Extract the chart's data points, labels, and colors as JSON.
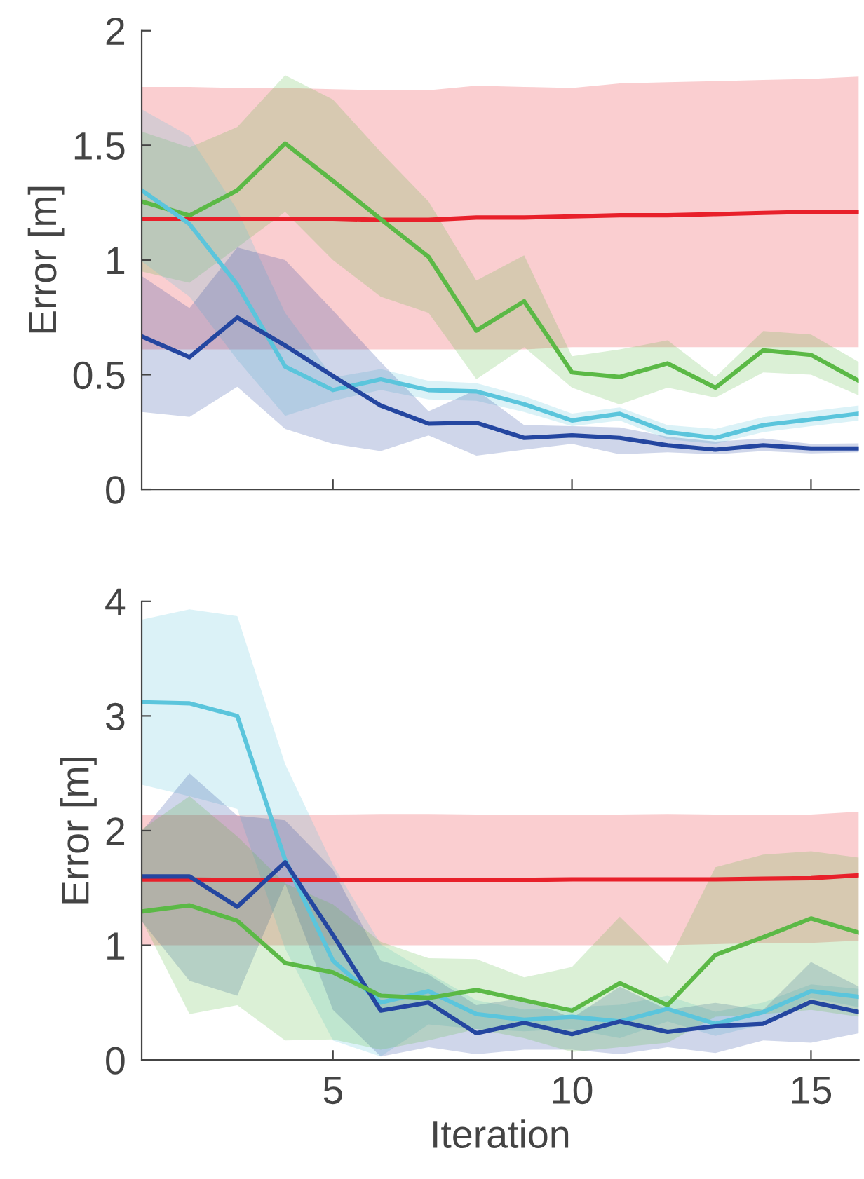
{
  "chart_data": [
    {
      "type": "line",
      "ylabel": "Error [m]",
      "x": [
        1,
        2,
        3,
        4,
        5,
        6,
        7,
        8,
        9,
        10,
        11,
        12,
        13,
        14,
        15,
        16
      ],
      "xlim": [
        1,
        16
      ],
      "ylim": [
        0,
        2
      ],
      "xticks": [
        5,
        10,
        15
      ],
      "yticks": [
        0,
        0.5,
        1,
        1.5,
        2
      ],
      "grid": false,
      "tick_labels": "y",
      "series": [
        {
          "color": "#e8202a",
          "values": [
            1.18,
            1.18,
            1.18,
            1.18,
            1.18,
            1.175,
            1.175,
            1.185,
            1.185,
            1.19,
            1.195,
            1.195,
            1.2,
            1.205,
            1.21,
            1.21
          ],
          "upper": [
            1.755,
            1.755,
            1.75,
            1.75,
            1.745,
            1.74,
            1.74,
            1.76,
            1.755,
            1.75,
            1.77,
            1.775,
            1.78,
            1.785,
            1.79,
            1.8
          ],
          "lower": [
            0.61,
            0.61,
            0.61,
            0.61,
            0.61,
            0.61,
            0.61,
            0.61,
            0.61,
            0.62,
            0.62,
            0.62,
            0.62,
            0.62,
            0.62,
            0.62
          ]
        },
        {
          "color": "#5bb946",
          "values": [
            1.255,
            1.194,
            1.304,
            1.508,
            1.345,
            1.178,
            1.014,
            0.692,
            0.82,
            0.51,
            0.49,
            0.549,
            0.443,
            0.606,
            0.586,
            0.473
          ],
          "upper": [
            1.56,
            1.49,
            1.58,
            1.806,
            1.7,
            1.47,
            1.255,
            0.91,
            1.02,
            0.58,
            0.61,
            0.65,
            0.49,
            0.69,
            0.675,
            0.555
          ],
          "lower": [
            0.95,
            0.9,
            1.055,
            1.21,
            1.0,
            0.84,
            0.77,
            0.48,
            0.62,
            0.443,
            0.37,
            0.443,
            0.4,
            0.51,
            0.5,
            0.41
          ]
        },
        {
          "color": "#5bc5dc",
          "values": [
            1.304,
            1.157,
            0.892,
            0.535,
            0.433,
            0.48,
            0.433,
            0.427,
            0.371,
            0.3,
            0.329,
            0.249,
            0.224,
            0.28,
            0.304,
            0.33
          ],
          "upper": [
            1.657,
            1.54,
            1.218,
            0.77,
            0.488,
            0.524,
            0.473,
            0.463,
            0.406,
            0.33,
            0.357,
            0.28,
            0.263,
            0.314,
            0.34,
            0.365
          ],
          "lower": [
            0.994,
            0.84,
            0.565,
            0.32,
            0.386,
            0.433,
            0.392,
            0.386,
            0.337,
            0.275,
            0.3,
            0.218,
            0.198,
            0.249,
            0.275,
            0.3
          ]
        },
        {
          "color": "#2446a0",
          "values": [
            0.667,
            0.576,
            0.749,
            0.627,
            0.494,
            0.365,
            0.286,
            0.29,
            0.224,
            0.235,
            0.224,
            0.192,
            0.173,
            0.192,
            0.178,
            0.178
          ],
          "upper": [
            0.93,
            0.79,
            1.055,
            1.0,
            0.78,
            0.555,
            0.34,
            0.433,
            0.28,
            0.275,
            0.27,
            0.229,
            0.208,
            0.222,
            0.198,
            0.2
          ],
          "lower": [
            0.337,
            0.316,
            0.447,
            0.263,
            0.198,
            0.167,
            0.235,
            0.147,
            0.173,
            0.198,
            0.153,
            0.161,
            0.153,
            0.167,
            0.157,
            0.161
          ]
        }
      ]
    },
    {
      "type": "line",
      "xlabel": "Iteration",
      "ylabel": "Error [m]",
      "x": [
        1,
        2,
        3,
        4,
        5,
        6,
        7,
        8,
        9,
        10,
        11,
        12,
        13,
        14,
        15,
        16
      ],
      "xlim": [
        1,
        16
      ],
      "ylim": [
        0,
        4
      ],
      "xticks": [
        5,
        10,
        15
      ],
      "yticks": [
        0,
        1,
        2,
        3,
        4
      ],
      "grid": false,
      "series": [
        {
          "color": "#e8202a",
          "values": [
            1.573,
            1.573,
            1.57,
            1.57,
            1.57,
            1.57,
            1.57,
            1.57,
            1.57,
            1.575,
            1.575,
            1.575,
            1.575,
            1.58,
            1.585,
            1.61
          ],
          "upper": [
            2.14,
            2.14,
            2.14,
            2.14,
            2.14,
            2.145,
            2.145,
            2.14,
            2.14,
            2.14,
            2.14,
            2.145,
            2.14,
            2.14,
            2.14,
            2.165
          ],
          "lower": [
            1.0,
            1.0,
            1.0,
            1.0,
            1.0,
            1.0,
            1.0,
            1.0,
            1.0,
            1.0,
            1.0,
            1.0,
            1.01,
            1.02,
            1.02,
            1.04
          ]
        },
        {
          "color": "#5bc5dc",
          "values": [
            3.12,
            3.11,
            3.0,
            1.745,
            0.866,
            0.5,
            0.6,
            0.4,
            0.35,
            0.376,
            0.335,
            0.445,
            0.315,
            0.417,
            0.6,
            0.55
          ],
          "upper": [
            3.84,
            3.93,
            3.87,
            2.58,
            1.7,
            1.01,
            0.76,
            0.52,
            0.44,
            0.46,
            0.48,
            0.56,
            0.42,
            0.5,
            0.66,
            0.62
          ],
          "lower": [
            2.4,
            2.3,
            2.19,
            0.97,
            0.17,
            0.03,
            0.31,
            0.27,
            0.25,
            0.27,
            0.19,
            0.335,
            0.21,
            0.31,
            0.54,
            0.46
          ]
        },
        {
          "color": "#2446a0",
          "values": [
            1.6,
            1.6,
            1.336,
            1.724,
            1.09,
            0.43,
            0.5,
            0.233,
            0.323,
            0.225,
            0.335,
            0.245,
            0.294,
            0.315,
            0.507,
            0.417
          ],
          "upper": [
            1.99,
            2.5,
            2.13,
            2.09,
            1.66,
            0.866,
            0.744,
            0.478,
            0.54,
            0.364,
            0.64,
            0.437,
            0.498,
            0.437,
            0.854,
            0.64
          ],
          "lower": [
            1.21,
            0.69,
            0.56,
            1.54,
            0.437,
            0.03,
            0.11,
            0.05,
            0.09,
            0.09,
            0.05,
            0.11,
            0.06,
            0.17,
            0.15,
            0.233
          ]
        },
        {
          "color": "#5bb946",
          "values": [
            1.295,
            1.348,
            1.213,
            0.846,
            0.764,
            0.56,
            0.54,
            0.61,
            0.52,
            0.43,
            0.67,
            0.478,
            0.915,
            1.07,
            1.234,
            1.11
          ],
          "upper": [
            2.01,
            2.3,
            1.95,
            1.54,
            1.356,
            1.03,
            0.887,
            0.88,
            0.72,
            0.81,
            1.25,
            0.84,
            1.68,
            1.79,
            1.82,
            1.765
          ],
          "lower": [
            1.22,
            0.4,
            0.478,
            0.17,
            0.18,
            0.09,
            0.17,
            0.27,
            0.19,
            0.07,
            0.11,
            0.15,
            0.376,
            0.4,
            0.437,
            0.376
          ]
        }
      ]
    }
  ]
}
